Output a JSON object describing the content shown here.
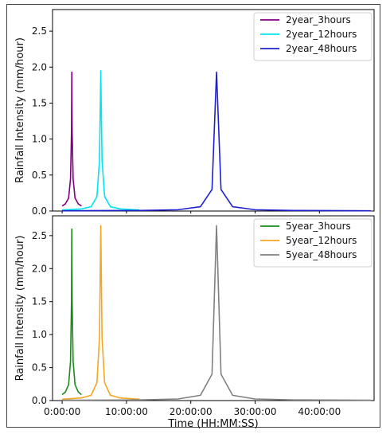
{
  "chart_data": [
    {
      "type": "line",
      "title": "",
      "xlabel": "",
      "ylabel": "Rainfall  Intensity (mm/hour)",
      "xlim": [
        -1.5,
        48.5
      ],
      "ylim": [
        0,
        2.8
      ],
      "yticks": [
        0.0,
        0.5,
        1.0,
        1.5,
        2.0,
        2.5
      ],
      "ytick_labels": [
        "0.0",
        "0.5",
        "1.0",
        "1.5",
        "2.0",
        "2.5"
      ],
      "legend_position": "top-right",
      "grid": false,
      "series": [
        {
          "name": "2year_3hours",
          "color": "#800080",
          "x": [
            0,
            0.5,
            1.0,
            1.3,
            1.45,
            1.5,
            1.55,
            1.7,
            2.0,
            2.5,
            3.0
          ],
          "y": [
            0.07,
            0.1,
            0.18,
            0.45,
            1.1,
            1.93,
            1.1,
            0.45,
            0.18,
            0.1,
            0.07
          ]
        },
        {
          "name": "2year_12hours",
          "color": "#00e5ee",
          "x": [
            0,
            3.0,
            4.5,
            5.4,
            5.8,
            6.0,
            6.2,
            6.6,
            7.5,
            9.0,
            12.0
          ],
          "y": [
            0.015,
            0.03,
            0.06,
            0.2,
            0.7,
            1.95,
            0.7,
            0.2,
            0.06,
            0.03,
            0.015
          ]
        },
        {
          "name": "2year_48hours",
          "color": "#1f1fd1",
          "x": [
            0,
            12.0,
            18.0,
            21.5,
            23.3,
            24.0,
            24.7,
            26.5,
            30.0,
            36.0,
            48.0
          ],
          "y": [
            0.004,
            0.008,
            0.018,
            0.06,
            0.3,
            1.93,
            0.3,
            0.06,
            0.018,
            0.008,
            0.004
          ]
        }
      ]
    },
    {
      "type": "line",
      "title": "",
      "xlabel": "Time (HH:MM:SS)",
      "ylabel": "Rainfall  Intensity (mm/hour)",
      "xlim": [
        -1.5,
        48.5
      ],
      "ylim": [
        0,
        2.8
      ],
      "xticks": [
        0,
        10,
        20,
        30,
        40
      ],
      "xtick_labels": [
        "0:00:00",
        "10:00:00",
        "20:00:00",
        "30:00:00",
        "40:00:00"
      ],
      "yticks": [
        0.0,
        0.5,
        1.0,
        1.5,
        2.0,
        2.5
      ],
      "ytick_labels": [
        "0.0",
        "0.5",
        "1.0",
        "1.5",
        "2.0",
        "2.5"
      ],
      "legend_position": "top-right",
      "grid": false,
      "series": [
        {
          "name": "5year_3hours",
          "color": "#1a8c1a",
          "x": [
            0,
            0.5,
            1.0,
            1.3,
            1.45,
            1.5,
            1.55,
            1.7,
            2.0,
            2.5,
            3.0
          ],
          "y": [
            0.09,
            0.13,
            0.24,
            0.6,
            1.5,
            2.6,
            1.5,
            0.6,
            0.24,
            0.13,
            0.09
          ]
        },
        {
          "name": "5year_12hours",
          "color": "#f5a623",
          "x": [
            0,
            3.0,
            4.5,
            5.4,
            5.8,
            6.0,
            6.2,
            6.6,
            7.5,
            9.0,
            12.0
          ],
          "y": [
            0.02,
            0.04,
            0.08,
            0.27,
            0.95,
            2.65,
            0.95,
            0.27,
            0.08,
            0.04,
            0.02
          ]
        },
        {
          "name": "5year_48hours",
          "color": "#808080",
          "x": [
            0,
            12.0,
            18.0,
            21.5,
            23.3,
            24.0,
            24.7,
            26.5,
            30.0,
            36.0,
            48.0
          ],
          "y": [
            0.005,
            0.01,
            0.024,
            0.08,
            0.4,
            2.65,
            0.4,
            0.08,
            0.024,
            0.01,
            0.005
          ]
        }
      ]
    }
  ]
}
